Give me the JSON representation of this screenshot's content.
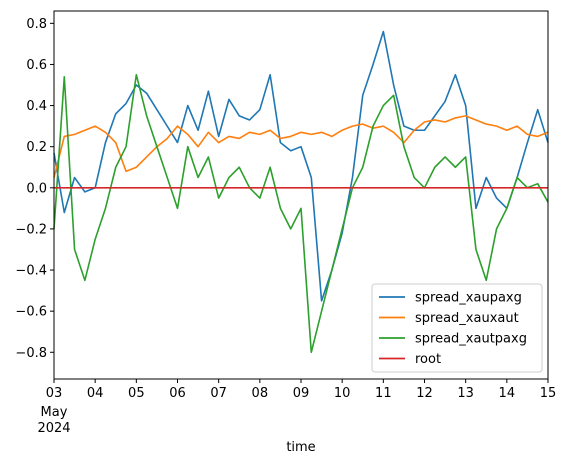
{
  "chart_data": {
    "type": "line",
    "title": "",
    "xlabel": "time",
    "ylabel": "",
    "ylim": [
      -0.93,
      0.86
    ],
    "xlim": [
      "2024-05-03",
      "2024-05-15"
    ],
    "x_ticks": [
      {
        "date": "2024-05-03",
        "label": "03"
      },
      {
        "date": "2024-05-04",
        "label": "04"
      },
      {
        "date": "2024-05-05",
        "label": "05"
      },
      {
        "date": "2024-05-06",
        "label": "06"
      },
      {
        "date": "2024-05-07",
        "label": "07"
      },
      {
        "date": "2024-05-08",
        "label": "08"
      },
      {
        "date": "2024-05-09",
        "label": "09"
      },
      {
        "date": "2024-05-10",
        "label": "10"
      },
      {
        "date": "2024-05-11",
        "label": "11"
      },
      {
        "date": "2024-05-12",
        "label": "12"
      },
      {
        "date": "2024-05-13",
        "label": "13"
      },
      {
        "date": "2024-05-14",
        "label": "14"
      },
      {
        "date": "2024-05-15",
        "label": "15"
      }
    ],
    "x_sub_labels": [
      "May",
      "2024"
    ],
    "y_ticks": [
      {
        "value": 0.8,
        "label": "0.8"
      },
      {
        "value": 0.6,
        "label": "0.6"
      },
      {
        "value": 0.4,
        "label": "0.4"
      },
      {
        "value": 0.2,
        "label": "0.2"
      },
      {
        "value": 0.0,
        "label": "0.0"
      },
      {
        "value": -0.2,
        "label": "−0.2"
      },
      {
        "value": -0.4,
        "label": "−0.4"
      },
      {
        "value": -0.6,
        "label": "−0.6"
      },
      {
        "value": -0.8,
        "label": "−0.8"
      }
    ],
    "grid": false,
    "legend_position": "bottom-right",
    "series": [
      {
        "name": "spread_xaupaxg",
        "color": "#1f77b4",
        "x": [
          "2024-05-03 00:00",
          "2024-05-03 06:00",
          "2024-05-03 12:00",
          "2024-05-03 18:00",
          "2024-05-04 00:00",
          "2024-05-04 06:00",
          "2024-05-04 12:00",
          "2024-05-04 18:00",
          "2024-05-05 00:00",
          "2024-05-05 06:00",
          "2024-05-05 12:00",
          "2024-05-05 18:00",
          "2024-05-06 00:00",
          "2024-05-06 06:00",
          "2024-05-06 12:00",
          "2024-05-06 18:00",
          "2024-05-07 00:00",
          "2024-05-07 06:00",
          "2024-05-07 12:00",
          "2024-05-07 18:00",
          "2024-05-08 00:00",
          "2024-05-08 06:00",
          "2024-05-08 12:00",
          "2024-05-08 18:00",
          "2024-05-09 00:00",
          "2024-05-09 06:00",
          "2024-05-09 12:00",
          "2024-05-09 18:00",
          "2024-05-10 00:00",
          "2024-05-10 06:00",
          "2024-05-10 12:00",
          "2024-05-10 18:00",
          "2024-05-11 00:00",
          "2024-05-11 06:00",
          "2024-05-11 12:00",
          "2024-05-11 18:00",
          "2024-05-12 00:00",
          "2024-05-12 06:00",
          "2024-05-12 12:00",
          "2024-05-12 18:00",
          "2024-05-13 00:00",
          "2024-05-13 06:00",
          "2024-05-13 12:00",
          "2024-05-13 18:00",
          "2024-05-14 00:00",
          "2024-05-14 06:00",
          "2024-05-14 12:00",
          "2024-05-14 18:00",
          "2024-05-15 00:00"
        ],
        "values": [
          0.17,
          -0.12,
          0.05,
          -0.02,
          0.0,
          0.22,
          0.36,
          0.41,
          0.5,
          0.46,
          0.38,
          0.3,
          0.22,
          0.4,
          0.28,
          0.47,
          0.25,
          0.43,
          0.35,
          0.33,
          0.38,
          0.55,
          0.22,
          0.18,
          0.2,
          0.05,
          -0.55,
          -0.4,
          -0.22,
          0.05,
          0.45,
          0.6,
          0.76,
          0.5,
          0.3,
          0.28,
          0.28,
          0.35,
          0.42,
          0.55,
          0.4,
          -0.1,
          0.05,
          -0.05,
          -0.1,
          0.05,
          0.22,
          0.38,
          0.22
        ]
      },
      {
        "name": "spread_xauxaut",
        "color": "#ff7f0e",
        "x": [
          "2024-05-03 00:00",
          "2024-05-03 06:00",
          "2024-05-03 12:00",
          "2024-05-03 18:00",
          "2024-05-04 00:00",
          "2024-05-04 06:00",
          "2024-05-04 12:00",
          "2024-05-04 18:00",
          "2024-05-05 00:00",
          "2024-05-05 06:00",
          "2024-05-05 12:00",
          "2024-05-05 18:00",
          "2024-05-06 00:00",
          "2024-05-06 06:00",
          "2024-05-06 12:00",
          "2024-05-06 18:00",
          "2024-05-07 00:00",
          "2024-05-07 06:00",
          "2024-05-07 12:00",
          "2024-05-07 18:00",
          "2024-05-08 00:00",
          "2024-05-08 06:00",
          "2024-05-08 12:00",
          "2024-05-08 18:00",
          "2024-05-09 00:00",
          "2024-05-09 06:00",
          "2024-05-09 12:00",
          "2024-05-09 18:00",
          "2024-05-10 00:00",
          "2024-05-10 06:00",
          "2024-05-10 12:00",
          "2024-05-10 18:00",
          "2024-05-11 00:00",
          "2024-05-11 06:00",
          "2024-05-11 12:00",
          "2024-05-11 18:00",
          "2024-05-12 00:00",
          "2024-05-12 06:00",
          "2024-05-12 12:00",
          "2024-05-12 18:00",
          "2024-05-13 00:00",
          "2024-05-13 06:00",
          "2024-05-13 12:00",
          "2024-05-13 18:00",
          "2024-05-14 00:00",
          "2024-05-14 06:00",
          "2024-05-14 12:00",
          "2024-05-14 18:00",
          "2024-05-15 00:00"
        ],
        "values": [
          0.05,
          0.25,
          0.26,
          0.28,
          0.3,
          0.27,
          0.22,
          0.08,
          0.1,
          0.15,
          0.2,
          0.24,
          0.3,
          0.26,
          0.2,
          0.27,
          0.22,
          0.25,
          0.24,
          0.27,
          0.26,
          0.28,
          0.24,
          0.25,
          0.27,
          0.26,
          0.27,
          0.25,
          0.28,
          0.3,
          0.31,
          0.29,
          0.3,
          0.27,
          0.22,
          0.28,
          0.32,
          0.33,
          0.32,
          0.34,
          0.35,
          0.33,
          0.31,
          0.3,
          0.28,
          0.3,
          0.26,
          0.25,
          0.27
        ]
      },
      {
        "name": "spread_xautpaxg",
        "color": "#2ca02c",
        "x": [
          "2024-05-03 00:00",
          "2024-05-03 06:00",
          "2024-05-03 12:00",
          "2024-05-03 18:00",
          "2024-05-04 00:00",
          "2024-05-04 06:00",
          "2024-05-04 12:00",
          "2024-05-04 18:00",
          "2024-05-05 00:00",
          "2024-05-05 06:00",
          "2024-05-05 12:00",
          "2024-05-05 18:00",
          "2024-05-06 00:00",
          "2024-05-06 06:00",
          "2024-05-06 12:00",
          "2024-05-06 18:00",
          "2024-05-07 00:00",
          "2024-05-07 06:00",
          "2024-05-07 12:00",
          "2024-05-07 18:00",
          "2024-05-08 00:00",
          "2024-05-08 06:00",
          "2024-05-08 12:00",
          "2024-05-08 18:00",
          "2024-05-09 00:00",
          "2024-05-09 06:00",
          "2024-05-09 12:00",
          "2024-05-09 18:00",
          "2024-05-10 00:00",
          "2024-05-10 06:00",
          "2024-05-10 12:00",
          "2024-05-10 18:00",
          "2024-05-11 00:00",
          "2024-05-11 06:00",
          "2024-05-11 12:00",
          "2024-05-11 18:00",
          "2024-05-12 00:00",
          "2024-05-12 06:00",
          "2024-05-12 12:00",
          "2024-05-12 18:00",
          "2024-05-13 00:00",
          "2024-05-13 06:00",
          "2024-05-13 12:00",
          "2024-05-13 18:00",
          "2024-05-14 00:00",
          "2024-05-14 06:00",
          "2024-05-14 12:00",
          "2024-05-14 18:00",
          "2024-05-15 00:00"
        ],
        "values": [
          -0.2,
          0.54,
          -0.3,
          -0.45,
          -0.25,
          -0.1,
          0.1,
          0.2,
          0.55,
          0.35,
          0.2,
          0.05,
          -0.1,
          0.2,
          0.05,
          0.15,
          -0.05,
          0.05,
          0.1,
          0.0,
          -0.05,
          0.1,
          -0.1,
          -0.2,
          -0.1,
          -0.8,
          -0.6,
          -0.4,
          -0.2,
          0.0,
          0.1,
          0.3,
          0.4,
          0.45,
          0.2,
          0.05,
          0.0,
          0.1,
          0.15,
          0.1,
          0.15,
          -0.3,
          -0.45,
          -0.2,
          -0.1,
          0.05,
          0.0,
          0.02,
          -0.07
        ]
      },
      {
        "name": "root",
        "color": "#d62728",
        "x": [
          "2024-05-03 00:00",
          "2024-05-15 00:00"
        ],
        "values": [
          0.0,
          0.0
        ]
      }
    ]
  }
}
